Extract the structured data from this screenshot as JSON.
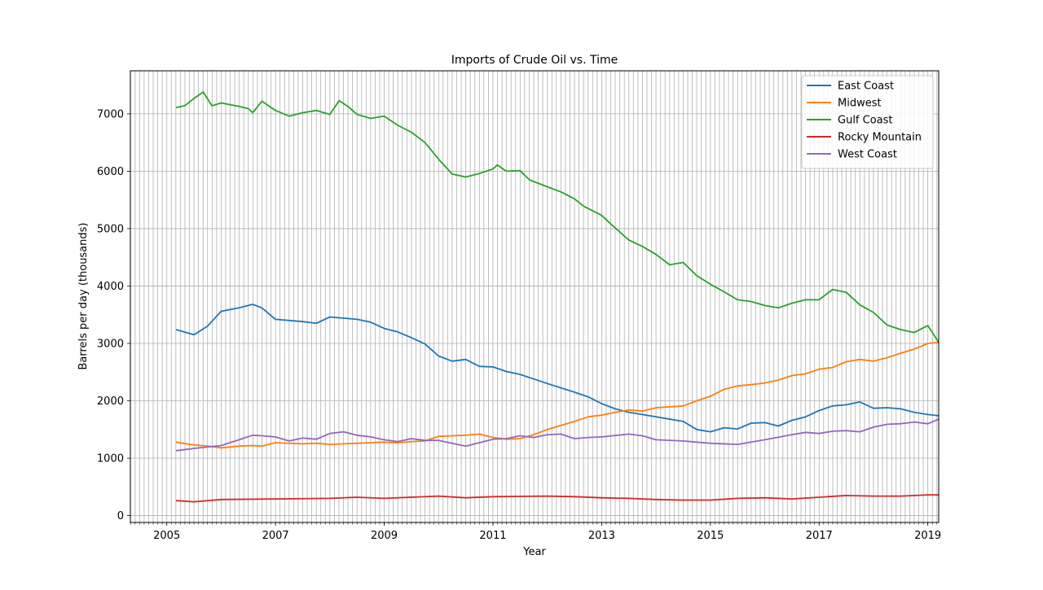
{
  "chart_data": {
    "type": "line",
    "title": "Imports of Crude Oil vs. Time",
    "xlabel": "Year",
    "ylabel": "Barrels per day (thousands)",
    "xlim": [
      2004.33,
      2019.2
    ],
    "ylim": [
      -120,
      7750
    ],
    "x_ticks": [
      "2005",
      "2007",
      "2009",
      "2011",
      "2013",
      "2015",
      "2017",
      "2019"
    ],
    "y_ticks": [
      0,
      1000,
      2000,
      3000,
      4000,
      5000,
      6000,
      7000
    ],
    "grid": true,
    "legend_position": "top-right",
    "series": [
      {
        "name": "East Coast",
        "color": "#1f77b4",
        "points": [
          [
            2005.17,
            3240
          ],
          [
            2005.5,
            3150
          ],
          [
            2005.75,
            3300
          ],
          [
            2006.0,
            3560
          ],
          [
            2006.33,
            3620
          ],
          [
            2006.58,
            3680
          ],
          [
            2006.75,
            3620
          ],
          [
            2007.0,
            3420
          ],
          [
            2007.5,
            3380
          ],
          [
            2007.75,
            3350
          ],
          [
            2008.0,
            3460
          ],
          [
            2008.5,
            3420
          ],
          [
            2008.75,
            3370
          ],
          [
            2009.0,
            3260
          ],
          [
            2009.25,
            3200
          ],
          [
            2009.5,
            3100
          ],
          [
            2009.75,
            2990
          ],
          [
            2010.0,
            2780
          ],
          [
            2010.25,
            2690
          ],
          [
            2010.5,
            2720
          ],
          [
            2010.75,
            2600
          ],
          [
            2011.0,
            2590
          ],
          [
            2011.25,
            2510
          ],
          [
            2011.5,
            2460
          ],
          [
            2011.75,
            2380
          ],
          [
            2012.0,
            2300
          ],
          [
            2012.5,
            2150
          ],
          [
            2012.75,
            2070
          ],
          [
            2013.0,
            1950
          ],
          [
            2013.25,
            1860
          ],
          [
            2013.5,
            1800
          ],
          [
            2013.75,
            1760
          ],
          [
            2014.0,
            1720
          ],
          [
            2014.5,
            1640
          ],
          [
            2014.75,
            1500
          ],
          [
            2015.0,
            1460
          ],
          [
            2015.25,
            1530
          ],
          [
            2015.5,
            1510
          ],
          [
            2015.75,
            1610
          ],
          [
            2016.0,
            1620
          ],
          [
            2016.25,
            1560
          ],
          [
            2016.5,
            1660
          ],
          [
            2016.75,
            1720
          ],
          [
            2017.0,
            1830
          ],
          [
            2017.25,
            1910
          ],
          [
            2017.5,
            1930
          ],
          [
            2017.75,
            1980
          ],
          [
            2018.0,
            1870
          ],
          [
            2018.25,
            1880
          ],
          [
            2018.5,
            1860
          ],
          [
            2018.75,
            1800
          ],
          [
            2019.0,
            1760
          ],
          [
            2019.2,
            1740
          ]
        ]
      },
      {
        "name": "Midwest",
        "color": "#ff7f0e",
        "points": [
          [
            2005.17,
            1280
          ],
          [
            2005.5,
            1230
          ],
          [
            2005.75,
            1210
          ],
          [
            2006.0,
            1180
          ],
          [
            2006.33,
            1210
          ],
          [
            2006.58,
            1220
          ],
          [
            2006.75,
            1210
          ],
          [
            2007.0,
            1270
          ],
          [
            2007.5,
            1250
          ],
          [
            2007.75,
            1260
          ],
          [
            2008.0,
            1240
          ],
          [
            2008.5,
            1260
          ],
          [
            2008.75,
            1270
          ],
          [
            2009.0,
            1280
          ],
          [
            2009.25,
            1270
          ],
          [
            2009.5,
            1290
          ],
          [
            2009.75,
            1300
          ],
          [
            2010.0,
            1380
          ],
          [
            2010.25,
            1390
          ],
          [
            2010.5,
            1400
          ],
          [
            2010.75,
            1420
          ],
          [
            2011.0,
            1360
          ],
          [
            2011.25,
            1330
          ],
          [
            2011.5,
            1340
          ],
          [
            2011.75,
            1410
          ],
          [
            2012.0,
            1500
          ],
          [
            2012.5,
            1640
          ],
          [
            2012.75,
            1720
          ],
          [
            2013.0,
            1750
          ],
          [
            2013.25,
            1800
          ],
          [
            2013.5,
            1840
          ],
          [
            2013.75,
            1820
          ],
          [
            2014.0,
            1880
          ],
          [
            2014.5,
            1910
          ],
          [
            2014.75,
            2000
          ],
          [
            2015.0,
            2080
          ],
          [
            2015.25,
            2200
          ],
          [
            2015.5,
            2260
          ],
          [
            2015.75,
            2280
          ],
          [
            2016.0,
            2310
          ],
          [
            2016.25,
            2360
          ],
          [
            2016.5,
            2440
          ],
          [
            2016.75,
            2470
          ],
          [
            2017.0,
            2550
          ],
          [
            2017.25,
            2580
          ],
          [
            2017.5,
            2680
          ],
          [
            2017.75,
            2720
          ],
          [
            2018.0,
            2690
          ],
          [
            2018.25,
            2750
          ],
          [
            2018.5,
            2830
          ],
          [
            2018.75,
            2900
          ],
          [
            2019.0,
            3000
          ],
          [
            2019.2,
            3020
          ]
        ]
      },
      {
        "name": "Gulf Coast",
        "color": "#2ca02c",
        "points": [
          [
            2005.17,
            7110
          ],
          [
            2005.33,
            7140
          ],
          [
            2005.5,
            7270
          ],
          [
            2005.67,
            7380
          ],
          [
            2005.83,
            7140
          ],
          [
            2006.0,
            7190
          ],
          [
            2006.33,
            7130
          ],
          [
            2006.5,
            7090
          ],
          [
            2006.58,
            7020
          ],
          [
            2006.75,
            7220
          ],
          [
            2007.0,
            7060
          ],
          [
            2007.25,
            6960
          ],
          [
            2007.5,
            7020
          ],
          [
            2007.75,
            7060
          ],
          [
            2008.0,
            6990
          ],
          [
            2008.17,
            7230
          ],
          [
            2008.33,
            7130
          ],
          [
            2008.5,
            6990
          ],
          [
            2008.75,
            6920
          ],
          [
            2009.0,
            6960
          ],
          [
            2009.25,
            6800
          ],
          [
            2009.5,
            6680
          ],
          [
            2009.75,
            6500
          ],
          [
            2010.0,
            6210
          ],
          [
            2010.25,
            5950
          ],
          [
            2010.5,
            5900
          ],
          [
            2010.75,
            5960
          ],
          [
            2011.0,
            6040
          ],
          [
            2011.08,
            6110
          ],
          [
            2011.25,
            6000
          ],
          [
            2011.5,
            6010
          ],
          [
            2011.67,
            5850
          ],
          [
            2012.0,
            5730
          ],
          [
            2012.25,
            5640
          ],
          [
            2012.5,
            5520
          ],
          [
            2012.67,
            5390
          ],
          [
            2013.0,
            5230
          ],
          [
            2013.17,
            5080
          ],
          [
            2013.5,
            4800
          ],
          [
            2013.75,
            4690
          ],
          [
            2014.0,
            4550
          ],
          [
            2014.25,
            4370
          ],
          [
            2014.5,
            4410
          ],
          [
            2014.75,
            4180
          ],
          [
            2015.0,
            4030
          ],
          [
            2015.25,
            3900
          ],
          [
            2015.5,
            3760
          ],
          [
            2015.75,
            3730
          ],
          [
            2016.0,
            3660
          ],
          [
            2016.25,
            3620
          ],
          [
            2016.5,
            3700
          ],
          [
            2016.75,
            3760
          ],
          [
            2017.0,
            3760
          ],
          [
            2017.25,
            3940
          ],
          [
            2017.5,
            3890
          ],
          [
            2017.75,
            3670
          ],
          [
            2018.0,
            3540
          ],
          [
            2018.25,
            3320
          ],
          [
            2018.5,
            3240
          ],
          [
            2018.75,
            3190
          ],
          [
            2019.0,
            3310
          ],
          [
            2019.2,
            3020
          ]
        ]
      },
      {
        "name": "Rocky Mountain",
        "color": "#d62728",
        "points": [
          [
            2005.17,
            260
          ],
          [
            2005.5,
            240
          ],
          [
            2006.0,
            280
          ],
          [
            2007.0,
            290
          ],
          [
            2008.0,
            300
          ],
          [
            2008.5,
            320
          ],
          [
            2009.0,
            300
          ],
          [
            2010.0,
            340
          ],
          [
            2010.5,
            310
          ],
          [
            2011.0,
            330
          ],
          [
            2012.0,
            340
          ],
          [
            2012.5,
            330
          ],
          [
            2013.0,
            310
          ],
          [
            2013.5,
            300
          ],
          [
            2014.0,
            280
          ],
          [
            2014.5,
            270
          ],
          [
            2015.0,
            270
          ],
          [
            2015.5,
            300
          ],
          [
            2016.0,
            310
          ],
          [
            2016.5,
            290
          ],
          [
            2017.0,
            320
          ],
          [
            2017.5,
            350
          ],
          [
            2018.0,
            340
          ],
          [
            2018.5,
            340
          ],
          [
            2019.0,
            360
          ],
          [
            2019.2,
            360
          ]
        ]
      },
      {
        "name": "West Coast",
        "color": "#9467bd",
        "points": [
          [
            2005.17,
            1130
          ],
          [
            2005.5,
            1170
          ],
          [
            2006.0,
            1220
          ],
          [
            2006.33,
            1320
          ],
          [
            2006.58,
            1400
          ],
          [
            2006.75,
            1390
          ],
          [
            2007.0,
            1370
          ],
          [
            2007.25,
            1300
          ],
          [
            2007.5,
            1350
          ],
          [
            2007.75,
            1330
          ],
          [
            2008.0,
            1430
          ],
          [
            2008.25,
            1460
          ],
          [
            2008.5,
            1400
          ],
          [
            2008.75,
            1370
          ],
          [
            2009.0,
            1320
          ],
          [
            2009.25,
            1290
          ],
          [
            2009.5,
            1340
          ],
          [
            2009.75,
            1310
          ],
          [
            2010.0,
            1310
          ],
          [
            2010.25,
            1260
          ],
          [
            2010.5,
            1210
          ],
          [
            2010.75,
            1270
          ],
          [
            2011.0,
            1330
          ],
          [
            2011.25,
            1340
          ],
          [
            2011.5,
            1390
          ],
          [
            2011.75,
            1360
          ],
          [
            2012.0,
            1410
          ],
          [
            2012.25,
            1420
          ],
          [
            2012.5,
            1340
          ],
          [
            2012.75,
            1360
          ],
          [
            2013.0,
            1370
          ],
          [
            2013.5,
            1420
          ],
          [
            2013.75,
            1390
          ],
          [
            2014.0,
            1320
          ],
          [
            2014.5,
            1300
          ],
          [
            2014.75,
            1280
          ],
          [
            2015.0,
            1260
          ],
          [
            2015.5,
            1240
          ],
          [
            2015.75,
            1280
          ],
          [
            2016.0,
            1320
          ],
          [
            2016.5,
            1410
          ],
          [
            2016.75,
            1450
          ],
          [
            2017.0,
            1430
          ],
          [
            2017.25,
            1470
          ],
          [
            2017.5,
            1480
          ],
          [
            2017.75,
            1460
          ],
          [
            2018.0,
            1540
          ],
          [
            2018.25,
            1590
          ],
          [
            2018.5,
            1600
          ],
          [
            2018.75,
            1630
          ],
          [
            2019.0,
            1600
          ],
          [
            2019.2,
            1680
          ]
        ]
      }
    ]
  }
}
